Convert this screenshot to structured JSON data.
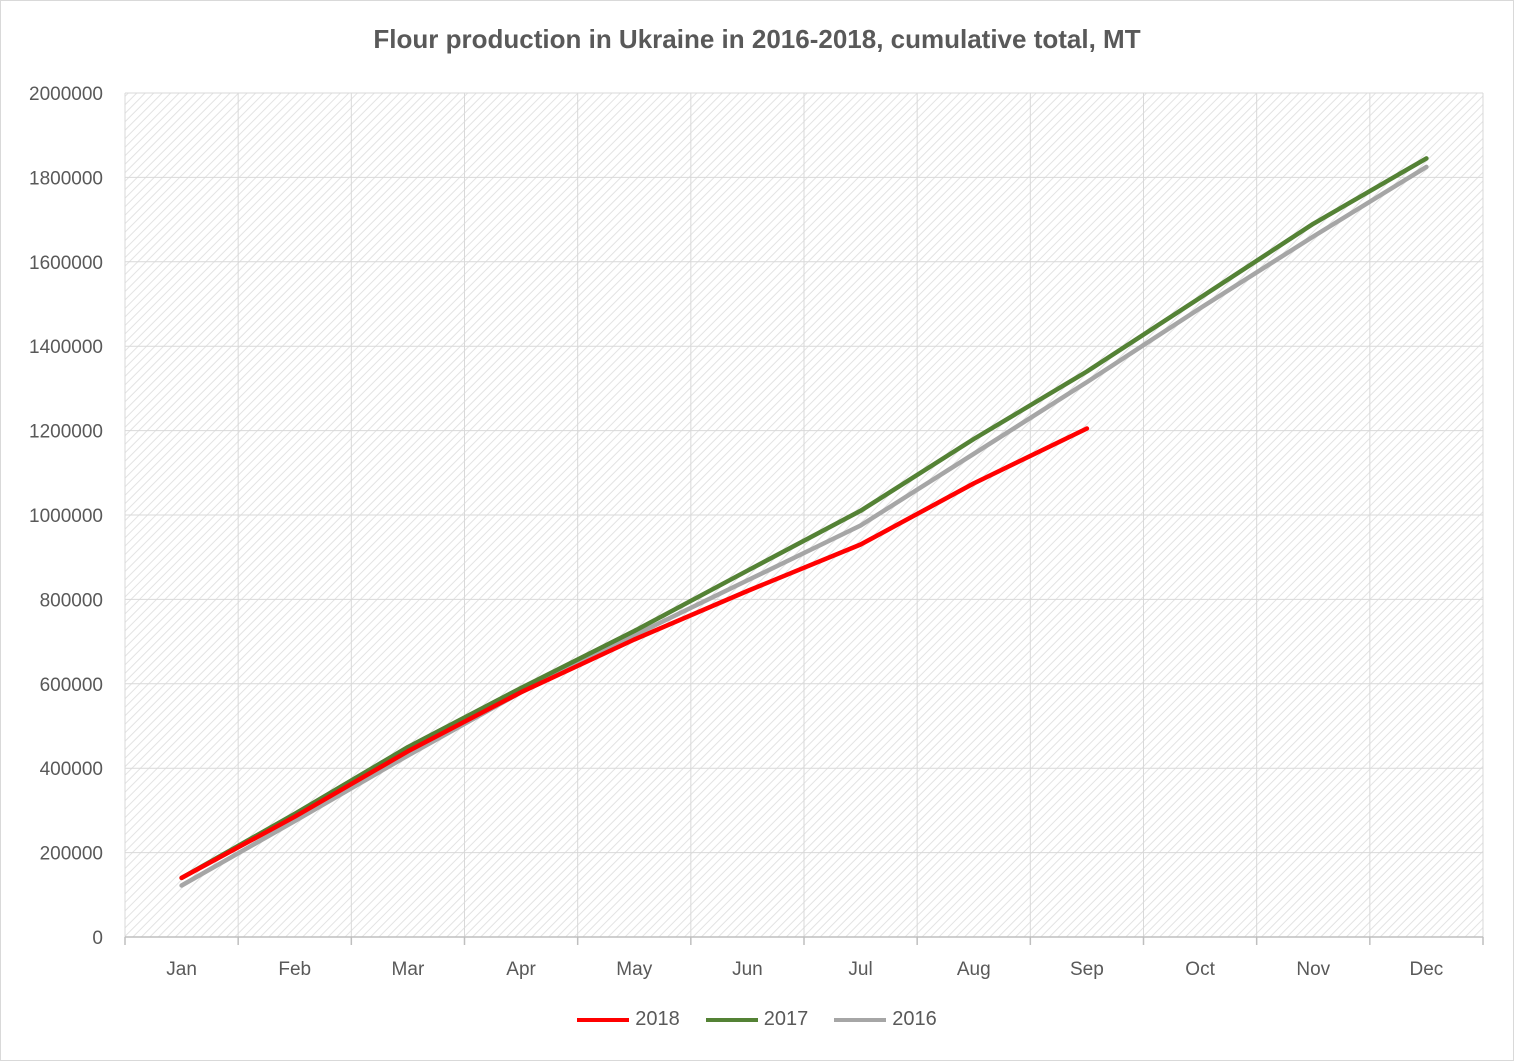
{
  "chart_data": {
    "type": "line",
    "title": "Flour production in Ukraine in 2016-2018, cumulative total, MT",
    "xlabel": "",
    "ylabel": "",
    "categories": [
      "Jan",
      "Feb",
      "Mar",
      "Apr",
      "May",
      "Jun",
      "Jul",
      "Aug",
      "Sep",
      "Oct",
      "Nov",
      "Dec"
    ],
    "ylim": [
      0,
      2000000
    ],
    "yticks": [
      0,
      200000,
      400000,
      600000,
      800000,
      1000000,
      1200000,
      1400000,
      1600000,
      1800000,
      2000000
    ],
    "ytick_labels": [
      "0",
      "200000",
      "400000",
      "600000",
      "800000",
      "1000000",
      "1200000",
      "1400000",
      "1600000",
      "1800000",
      "2000000"
    ],
    "grid": true,
    "legend_position": "bottom",
    "series": [
      {
        "name": "2018",
        "color": "#ff0000",
        "values": [
          140000,
          285000,
          440000,
          580000,
          705000,
          820000,
          930000,
          1075000,
          1205000,
          null,
          null,
          null
        ]
      },
      {
        "name": "2017",
        "color": "#548235",
        "values": [
          140000,
          292000,
          450000,
          590000,
          725000,
          868000,
          1010000,
          1180000,
          1340000,
          1515000,
          1690000,
          1845000
        ]
      },
      {
        "name": "2016",
        "color": "#a6a6a6",
        "values": [
          122000,
          275000,
          430000,
          580000,
          715000,
          845000,
          975000,
          1145000,
          1315000,
          1490000,
          1660000,
          1825000
        ]
      }
    ]
  }
}
